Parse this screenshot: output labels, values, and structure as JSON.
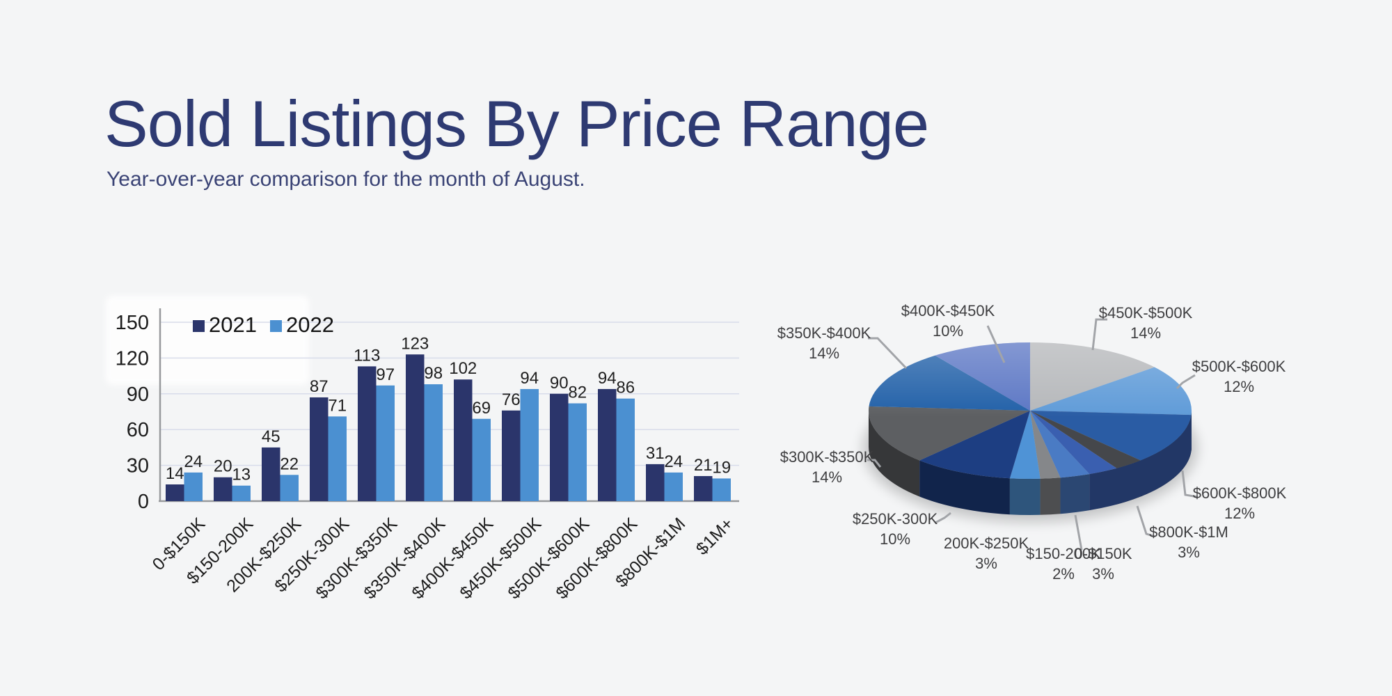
{
  "page": {
    "title": "Sold Listings By Price Range",
    "subtitle": "Year-over-year comparison for the month of August.",
    "title_color": "#2e3a72",
    "subtitle_color": "#3a4375",
    "background_color": "#f4f5f6"
  },
  "chart_data": [
    {
      "type": "bar",
      "categories": [
        "0-$150K",
        "$150-200K",
        "200K-$250K",
        "$250K-300K",
        "$300K-$350K",
        "$350K-$400K",
        "$400K-$450K",
        "$450K-$500K",
        "$500K-$600K",
        "$600K-$800K",
        "$800K-$1M",
        "$1M+"
      ],
      "series": [
        {
          "name": "2021",
          "color": "#2b356b",
          "values": [
            14,
            20,
            45,
            87,
            113,
            123,
            102,
            76,
            90,
            94,
            31,
            21
          ]
        },
        {
          "name": "2022",
          "color": "#4b90d1",
          "values": [
            24,
            13,
            22,
            71,
            97,
            98,
            69,
            94,
            82,
            86,
            24,
            19
          ]
        }
      ],
      "ylim": [
        0,
        150
      ],
      "yticks": [
        0,
        30,
        60,
        90,
        120,
        150
      ],
      "grid": true,
      "gridline_color": "#d8dcea",
      "axis_color": "#97999c",
      "value_labels": true,
      "legend_position": "top-left"
    },
    {
      "type": "pie",
      "style": "3d",
      "direction": "clockwise",
      "start_angle_deg": 68.4,
      "slices": [
        {
          "label": "0-$150K",
          "pct": 3,
          "color": "#4a7bc4",
          "callout": true
        },
        {
          "label": "$150-200K",
          "pct": 2,
          "color": "#85878a",
          "callout": true
        },
        {
          "label": "200K-$250K",
          "pct": 3,
          "color": "#4f93d6",
          "callout": true
        },
        {
          "label": "$250K-300K",
          "pct": 10,
          "color": "#1d3e82",
          "callout": true
        },
        {
          "label": "$300K-$350K",
          "pct": 14,
          "color": "#5d5f62",
          "callout": true
        },
        {
          "label": "$350K-$400K",
          "pct": 14,
          "color": "#2160a8",
          "callout": true
        },
        {
          "label": "$400K-$450K",
          "pct": 10,
          "color": "#5b76c4",
          "callout": true
        },
        {
          "label": "$450K-$500K",
          "pct": 14,
          "color": "#b5b7ba",
          "callout": true
        },
        {
          "label": "$500K-$600K",
          "pct": 12,
          "color": "#5f9bd8",
          "callout": true
        },
        {
          "label": "$600K-$800K",
          "pct": 12,
          "color": "#2a5ca4",
          "callout": true
        },
        {
          "label": "$800K-$1M",
          "pct": 3,
          "color": "#45474b",
          "callout": true
        },
        {
          "label": "$1M+",
          "pct": 3,
          "color": "#3a5fb0",
          "callout": false
        }
      ],
      "callout_line_color": "#a2a4a8"
    }
  ]
}
